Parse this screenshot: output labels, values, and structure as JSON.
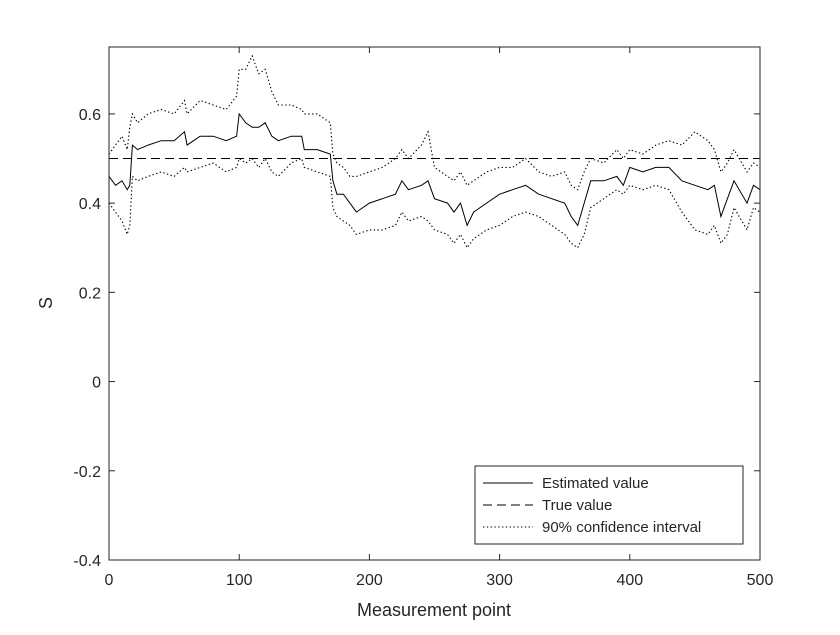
{
  "chart_data": {
    "type": "line",
    "title": "",
    "xlabel": "Measurement point",
    "ylabel": "S",
    "xlim": [
      0,
      500
    ],
    "ylim": [
      -0.4,
      0.75
    ],
    "grid": false,
    "legend_position": "bottom-right",
    "x_ticks": [
      0,
      100,
      200,
      300,
      400,
      500
    ],
    "x_tick_labels": [
      "0",
      "100",
      "200",
      "300",
      "400",
      "500"
    ],
    "y_ticks": [
      -0.4,
      -0.2,
      0,
      0.2,
      0.4,
      0.6
    ],
    "y_tick_labels": [
      "-0.4",
      "-0.2",
      "0",
      "0.2",
      "0.4",
      "0.6"
    ],
    "series": [
      {
        "name": "Estimated value",
        "style": "solid",
        "color": "#000000",
        "x": [
          0,
          5,
          10,
          14,
          16,
          18,
          22,
          30,
          40,
          50,
          58,
          60,
          70,
          80,
          90,
          98,
          100,
          105,
          110,
          115,
          120,
          125,
          130,
          140,
          148,
          150,
          160,
          170,
          172,
          175,
          180,
          185,
          190,
          200,
          210,
          220,
          225,
          230,
          240,
          245,
          250,
          260,
          265,
          270,
          275,
          280,
          290,
          300,
          310,
          320,
          330,
          340,
          350,
          355,
          360,
          365,
          370,
          380,
          390,
          395,
          400,
          410,
          420,
          430,
          440,
          450,
          460,
          465,
          470,
          475,
          480,
          490,
          495,
          500
        ],
        "y": [
          0.46,
          0.44,
          0.45,
          0.43,
          0.44,
          0.53,
          0.52,
          0.53,
          0.54,
          0.54,
          0.56,
          0.53,
          0.55,
          0.55,
          0.54,
          0.55,
          0.6,
          0.58,
          0.57,
          0.57,
          0.58,
          0.55,
          0.54,
          0.55,
          0.55,
          0.52,
          0.52,
          0.51,
          0.45,
          0.42,
          0.42,
          0.4,
          0.38,
          0.4,
          0.41,
          0.42,
          0.45,
          0.43,
          0.44,
          0.45,
          0.41,
          0.4,
          0.38,
          0.4,
          0.35,
          0.38,
          0.4,
          0.42,
          0.43,
          0.44,
          0.42,
          0.41,
          0.4,
          0.37,
          0.35,
          0.4,
          0.45,
          0.45,
          0.46,
          0.44,
          0.48,
          0.47,
          0.48,
          0.48,
          0.45,
          0.44,
          0.43,
          0.44,
          0.37,
          0.41,
          0.45,
          0.4,
          0.44,
          0.43
        ]
      },
      {
        "name": "True value",
        "style": "dashed",
        "color": "#000000",
        "x": [
          0,
          500
        ],
        "y": [
          0.5,
          0.5
        ]
      },
      {
        "name": "90% confidence interval",
        "style": "dotted",
        "color": "#000000",
        "x": [
          0,
          5,
          10,
          14,
          16,
          18,
          22,
          30,
          40,
          50,
          58,
          60,
          70,
          80,
          90,
          98,
          100,
          105,
          110,
          115,
          120,
          125,
          130,
          140,
          148,
          150,
          160,
          170,
          172,
          175,
          180,
          185,
          190,
          200,
          210,
          220,
          225,
          230,
          240,
          245,
          250,
          260,
          265,
          270,
          275,
          280,
          290,
          300,
          310,
          320,
          330,
          340,
          350,
          355,
          360,
          365,
          370,
          380,
          390,
          395,
          400,
          410,
          420,
          430,
          440,
          450,
          460,
          465,
          470,
          475,
          480,
          490,
          495,
          500
        ],
        "y": [
          0.51,
          0.53,
          0.55,
          0.52,
          0.57,
          0.6,
          0.58,
          0.6,
          0.61,
          0.6,
          0.63,
          0.6,
          0.63,
          0.62,
          0.61,
          0.64,
          0.7,
          0.7,
          0.73,
          0.69,
          0.7,
          0.65,
          0.62,
          0.62,
          0.61,
          0.6,
          0.6,
          0.58,
          0.51,
          0.49,
          0.48,
          0.46,
          0.46,
          0.47,
          0.48,
          0.5,
          0.52,
          0.5,
          0.53,
          0.56,
          0.48,
          0.46,
          0.45,
          0.47,
          0.44,
          0.45,
          0.47,
          0.48,
          0.48,
          0.5,
          0.47,
          0.46,
          0.47,
          0.44,
          0.43,
          0.47,
          0.5,
          0.49,
          0.52,
          0.5,
          0.52,
          0.51,
          0.53,
          0.54,
          0.53,
          0.56,
          0.54,
          0.52,
          0.47,
          0.49,
          0.52,
          0.47,
          0.49,
          0.48
        ]
      },
      {
        "name": "90% confidence interval",
        "style": "dotted",
        "color": "#000000",
        "show_in_legend": false,
        "x": [
          0,
          5,
          10,
          14,
          16,
          18,
          22,
          30,
          40,
          50,
          58,
          60,
          70,
          80,
          90,
          98,
          100,
          105,
          110,
          115,
          120,
          125,
          130,
          140,
          148,
          150,
          160,
          170,
          172,
          175,
          180,
          185,
          190,
          200,
          210,
          220,
          225,
          230,
          240,
          245,
          250,
          260,
          265,
          270,
          275,
          280,
          290,
          300,
          310,
          320,
          330,
          340,
          350,
          355,
          360,
          365,
          370,
          380,
          390,
          395,
          400,
          410,
          420,
          430,
          440,
          450,
          460,
          465,
          470,
          475,
          480,
          490,
          495,
          500
        ],
        "y": [
          0.4,
          0.38,
          0.36,
          0.33,
          0.35,
          0.46,
          0.45,
          0.46,
          0.47,
          0.46,
          0.48,
          0.47,
          0.48,
          0.49,
          0.47,
          0.48,
          0.5,
          0.49,
          0.5,
          0.48,
          0.5,
          0.47,
          0.46,
          0.49,
          0.5,
          0.48,
          0.47,
          0.46,
          0.39,
          0.37,
          0.36,
          0.35,
          0.33,
          0.34,
          0.34,
          0.35,
          0.38,
          0.36,
          0.37,
          0.36,
          0.34,
          0.33,
          0.31,
          0.33,
          0.3,
          0.32,
          0.34,
          0.35,
          0.37,
          0.38,
          0.37,
          0.35,
          0.33,
          0.31,
          0.3,
          0.33,
          0.39,
          0.41,
          0.43,
          0.42,
          0.44,
          0.43,
          0.44,
          0.43,
          0.38,
          0.34,
          0.33,
          0.35,
          0.31,
          0.33,
          0.39,
          0.34,
          0.39,
          0.38
        ]
      }
    ]
  }
}
